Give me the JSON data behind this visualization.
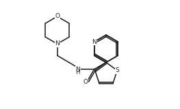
{
  "figsize": [
    2.63,
    1.59
  ],
  "dpi": 100,
  "bg": "#ffffff",
  "lc": "#1a1a1a",
  "lw": 1.1,
  "xlim": [
    0,
    263
  ],
  "ylim": [
    0,
    159
  ],
  "label_fontsize": 6.5
}
